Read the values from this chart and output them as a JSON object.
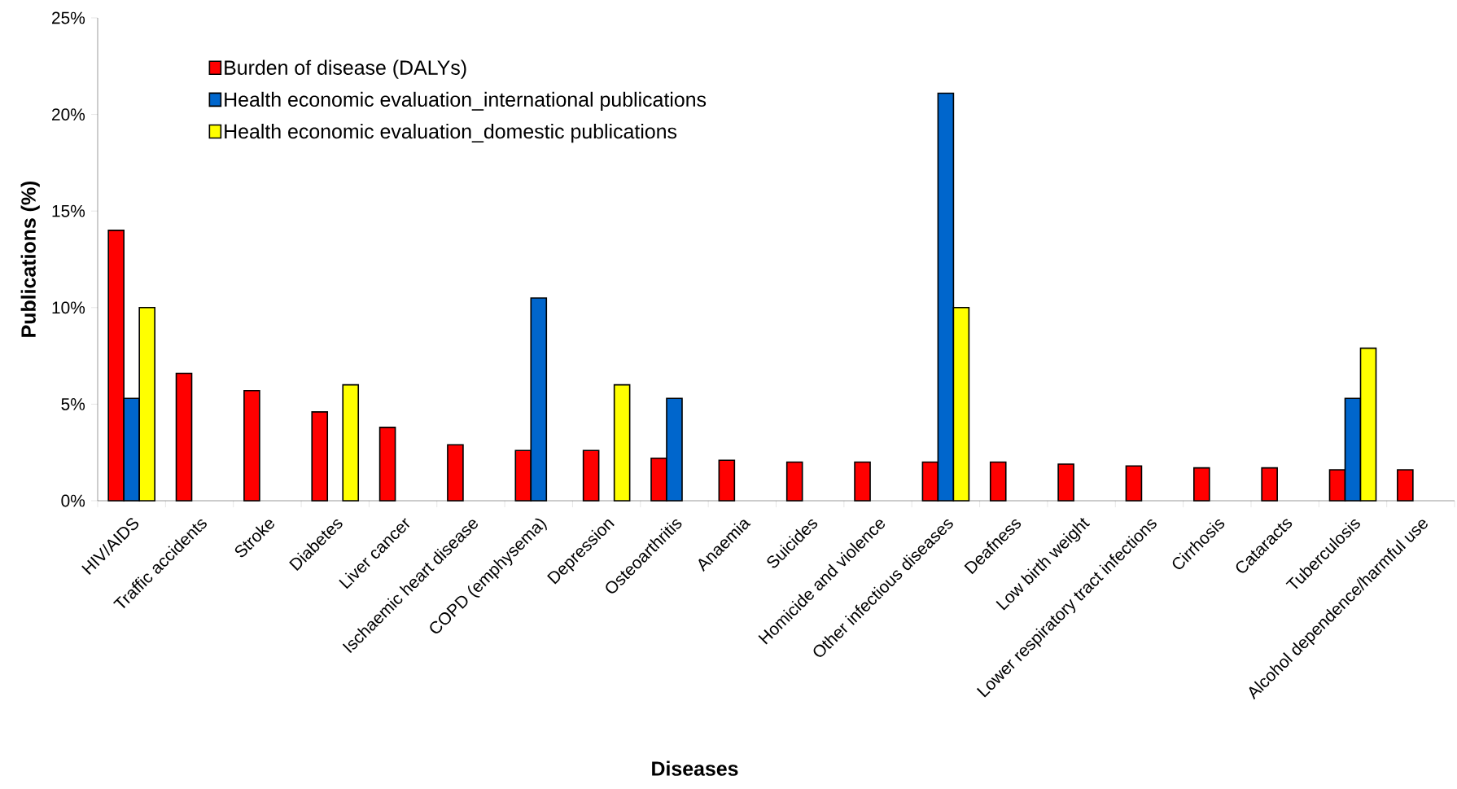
{
  "chart_data": {
    "type": "bar",
    "xlabel": "Diseases",
    "ylabel": "Publications (%)",
    "categories": [
      "HIV/AIDS",
      "Traffic accidents",
      "Stroke",
      "Diabetes",
      "Liver cancer",
      "Ischaemic heart disease",
      "COPD (emphysema)",
      "Depression",
      "Osteoarthritis",
      "Anaemia",
      "Suicides",
      "Homicide and violence",
      "Other infectious diseases",
      "Deafness",
      "Low birth weight",
      "Lower respiratory tract infections",
      "Cirrhosis",
      "Cataracts",
      "Tuberculosis",
      "Alcohol dependence/harmful use"
    ],
    "series": [
      {
        "name": "Burden of disease (DALYs)",
        "color": "#ff0000",
        "values": [
          14.0,
          6.6,
          5.7,
          4.6,
          3.8,
          2.9,
          2.6,
          2.6,
          2.2,
          2.1,
          2.0,
          2.0,
          2.0,
          2.0,
          1.9,
          1.8,
          1.7,
          1.7,
          1.6,
          1.6
        ]
      },
      {
        "name": "Health economic evaluation_international publications",
        "color": "#0066cc",
        "values": [
          5.3,
          null,
          null,
          null,
          null,
          null,
          10.5,
          null,
          5.3,
          null,
          null,
          null,
          21.1,
          null,
          null,
          null,
          null,
          null,
          5.3,
          null
        ]
      },
      {
        "name": "Health economic evaluation_domestic publications",
        "color": "#ffff00",
        "values": [
          10.0,
          null,
          null,
          6.0,
          null,
          null,
          null,
          6.0,
          null,
          null,
          null,
          null,
          10.0,
          null,
          null,
          null,
          null,
          null,
          7.9,
          null
        ]
      }
    ],
    "ylim": [
      0,
      25
    ],
    "yticks": [
      {
        "value": 0,
        "label": "0%"
      },
      {
        "value": 5,
        "label": "5%"
      },
      {
        "value": 10,
        "label": "10%"
      },
      {
        "value": 15,
        "label": "15%"
      },
      {
        "value": 20,
        "label": "20%"
      },
      {
        "value": 25,
        "label": "25%"
      }
    ],
    "grid": false,
    "legend": "top left"
  }
}
